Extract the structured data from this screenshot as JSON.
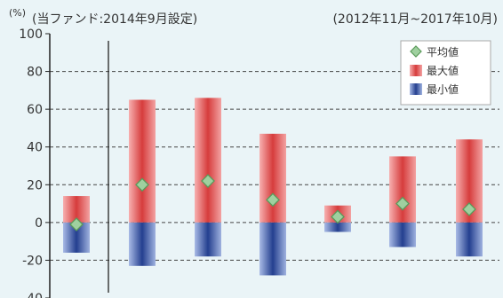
{
  "header": {
    "unit_label": "(%)",
    "note_left": "(当ファンド:2014年9月設定)",
    "note_right": "(2012年11月~2017年10月)"
  },
  "chart_data": {
    "type": "bar",
    "title": "",
    "xlabel": "",
    "ylabel": "(%)",
    "ylim": [
      -40,
      100
    ],
    "y_ticks": [
      -40,
      -20,
      0,
      20,
      40,
      60,
      80,
      100
    ],
    "grid": true,
    "legend_position": "top-right",
    "categories": [
      "",
      "",
      "",
      "",
      "",
      "",
      ""
    ],
    "series": [
      {
        "name": "平均値",
        "kind": "marker",
        "color": "#7fbf7f",
        "values": [
          -1,
          20,
          22,
          12,
          3,
          10,
          7
        ]
      },
      {
        "name": "最大値",
        "kind": "bar",
        "color": "#d94545",
        "values": [
          14,
          65,
          66,
          47,
          9,
          35,
          44
        ]
      },
      {
        "name": "最小値",
        "kind": "bar",
        "color": "#2f4f9a",
        "values": [
          -16,
          -23,
          -18,
          -28,
          -5,
          -13,
          -18
        ]
      }
    ]
  }
}
